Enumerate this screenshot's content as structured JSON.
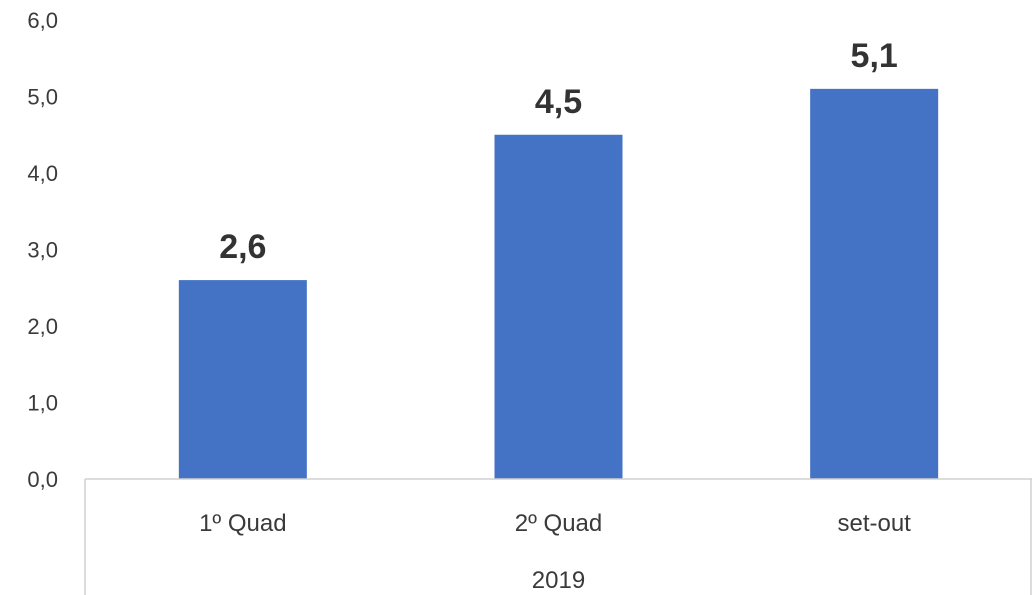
{
  "chart_data": {
    "type": "bar",
    "categories": [
      "1º Quad",
      "2º Quad",
      "set-out"
    ],
    "values": [
      2.6,
      4.5,
      5.1
    ],
    "data_labels": [
      "2,6",
      "4,5",
      "5,1"
    ],
    "group_label": "2019",
    "yticks": [
      0,
      1,
      2,
      3,
      4,
      5,
      6
    ],
    "ytick_labels": [
      "0,0",
      "1,0",
      "2,0",
      "3,0",
      "4,0",
      "5,0",
      "6,0"
    ],
    "ylim": [
      0,
      6
    ],
    "title": "",
    "xlabel": "",
    "ylabel": "",
    "grid": false,
    "legend": "none",
    "bar_color": "#4472C4"
  }
}
